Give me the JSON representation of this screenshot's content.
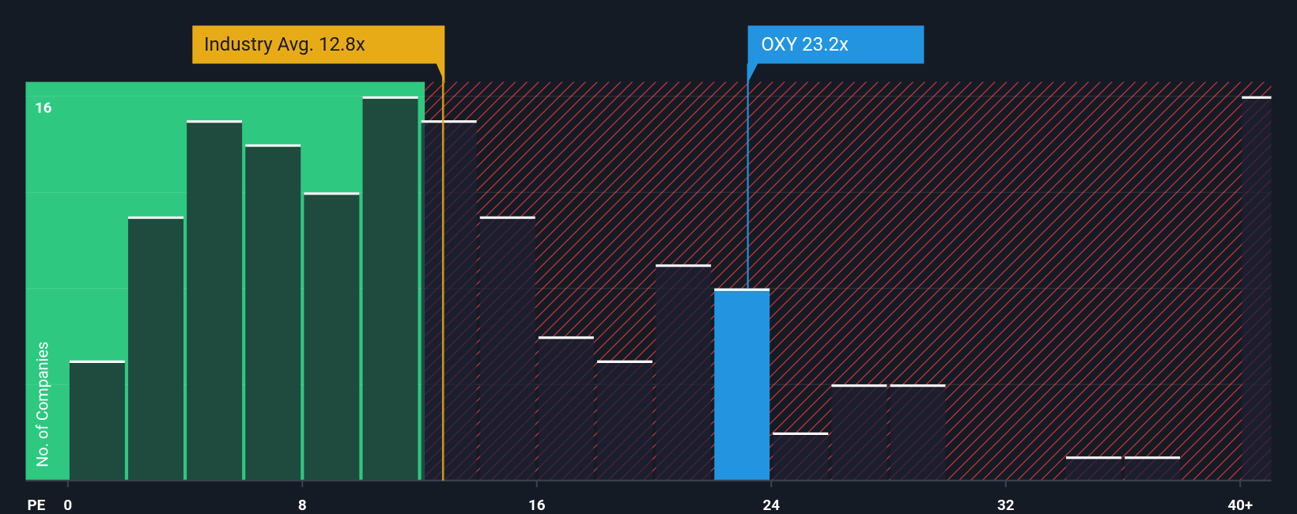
{
  "chart_data": {
    "type": "histogram",
    "x_label": "PE",
    "y_label": "No. of Companies",
    "bins": [
      0,
      2,
      4,
      6,
      8,
      10,
      12,
      14,
      16,
      18,
      20,
      22,
      24,
      26,
      28,
      30,
      32,
      34,
      36,
      38,
      40,
      42
    ],
    "values": [
      5,
      11,
      15,
      14,
      12,
      16,
      15,
      11,
      6,
      5,
      9,
      8,
      2,
      4,
      4,
      0,
      0,
      1,
      1,
      0,
      16
    ],
    "xlim": [
      -1.44,
      41.06
    ],
    "ylim": [
      0,
      16.6
    ],
    "xticks": [
      0,
      8,
      16,
      24,
      32,
      {
        "value": 40,
        "label": "40+"
      }
    ],
    "yticks": [
      16
    ],
    "ygrid": [
      4,
      8,
      12,
      16
    ],
    "color": "#1f4a3e",
    "below_color": "#2ec880",
    "above_color": "#d9363e",
    "industry_average": {
      "label": "Industry Avg. 12.8x",
      "value": 12.8,
      "color": "#e8ab18"
    },
    "highlight": {
      "label": "OXY 23.2x",
      "value": 23.2,
      "color": "#2394e0"
    }
  }
}
